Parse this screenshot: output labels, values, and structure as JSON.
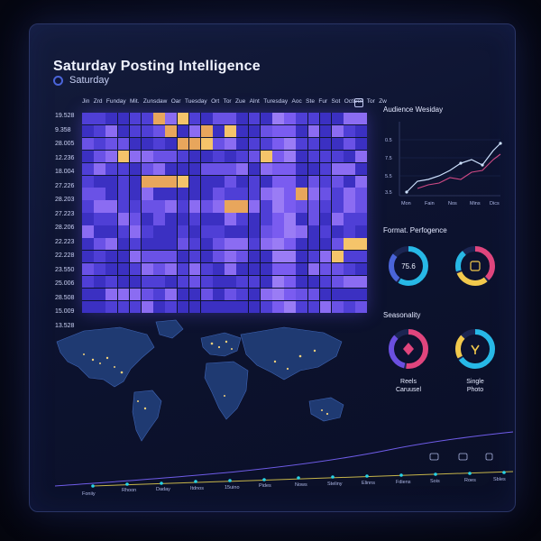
{
  "header": {
    "title": "Saturday Posting Intelligence",
    "day_filter": "Saturday"
  },
  "heatmap": {
    "columns": [
      "Jin",
      "Zrd",
      "Funday",
      "Mit.",
      "Zunsdaw",
      "Oar",
      "Tuesday",
      "Ort",
      "Tor",
      "Zue",
      "Alnt",
      "Turesday",
      "Aoc",
      "Ste",
      "Fur",
      "Sot",
      "Octiver",
      "Tor",
      "Zw"
    ],
    "rows": [
      "19.528",
      "9.358",
      "28.005",
      "12.236",
      "18.004",
      "27.226",
      "28.203",
      "27.223",
      "28.206",
      "22.223",
      "22.228",
      "23.550",
      "25.006",
      "28.508",
      "15.009",
      "13.528"
    ]
  },
  "audience": {
    "title": "Audience Wesiday",
    "y_ticks": [
      "0.5",
      "7.5",
      "5.5",
      "3.5"
    ],
    "x_ticks": [
      "Mon",
      "Fain",
      "Nos",
      "Mins",
      "Dics"
    ]
  },
  "format": {
    "title": "Format. Perfogence",
    "donut1_value": "75.6"
  },
  "seasonality": {
    "title": "Seasonality",
    "label_left": [
      "Reels",
      "Caruusel"
    ],
    "label_right": [
      "Single",
      "Photo"
    ]
  },
  "timeline": {
    "labels": [
      "Foniiy",
      "Rhoon",
      "Daday",
      "Itdnos",
      "15uino",
      "Pides",
      "Nows",
      "Steliny",
      "Elinns",
      "Fdiens",
      "Sois",
      "Roes",
      "Sbles"
    ]
  },
  "colors": {
    "accent": "#4a64d8",
    "heat_low": "#3d2fc6",
    "heat_mid": "#7a5cf0",
    "heat_high": "#f5c46a",
    "pink": "#e0457d",
    "cyan": "#27b8e6",
    "yellow": "#f2c94c"
  }
}
